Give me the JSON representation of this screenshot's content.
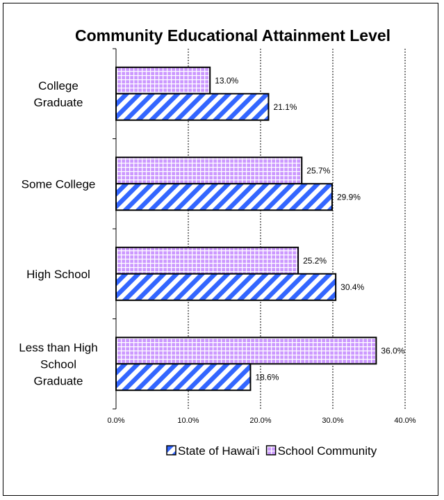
{
  "chart_data": {
    "type": "bar",
    "orientation": "horizontal",
    "title": "Community Educational Attainment Level",
    "categories": [
      "College Graduate",
      "Some College",
      "High School",
      "Less than High School Graduate"
    ],
    "category_lines": [
      [
        "College",
        "Graduate"
      ],
      [
        "Some College"
      ],
      [
        "High School"
      ],
      [
        "Less than High",
        "School",
        "Graduate"
      ]
    ],
    "series": [
      {
        "name": "School Community",
        "values": [
          13.0,
          25.7,
          25.2,
          36.0
        ],
        "labels": [
          "13.0%",
          "25.7%",
          "25.2%",
          "36.0%"
        ],
        "color": "#cc99ff",
        "pattern": "grid"
      },
      {
        "name": "State of Hawai'i",
        "values": [
          21.1,
          29.9,
          30.4,
          18.6
        ],
        "labels": [
          "21.1%",
          "29.9%",
          "30.4%",
          "18.6%"
        ],
        "color": "#3366ff",
        "pattern": "diagonal-stripes"
      }
    ],
    "xlim": [
      0,
      40
    ],
    "xticks": [
      0,
      10,
      20,
      30,
      40
    ],
    "xtick_labels": [
      "0.0%",
      "10.0%",
      "20.0%",
      "30.0%",
      "40.0%"
    ],
    "grid": "vertical-dashed",
    "legend": "bottom",
    "legend_order": [
      "State of Hawai'i",
      "School Community"
    ]
  }
}
